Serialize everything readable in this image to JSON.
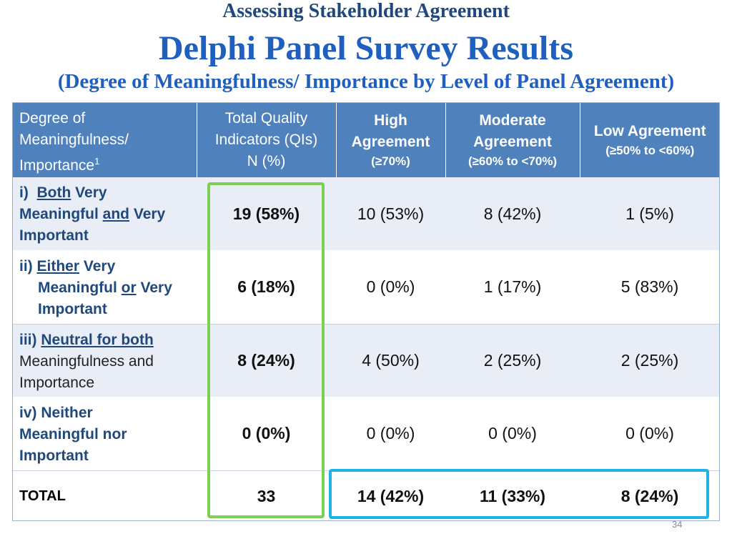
{
  "slide": {
    "supertitle": "Assessing Stakeholder Agreement",
    "title": "Delphi Panel Survey Results",
    "subtitle": "(Degree of Meaningfulness/ Importance by Level of Panel Agreement)",
    "page_number": "34"
  },
  "table": {
    "headers": {
      "degree_line1": "Degree of",
      "degree_line2": "Meaningfulness/",
      "degree_line3": "Importance",
      "degree_sup": "1",
      "total_line1": "Total  Quality",
      "total_line2": "Indicators (QIs)",
      "total_line3": "N (%)",
      "high_line1": "High",
      "high_line2": "Agreement",
      "high_range": "(≥70%)",
      "moderate_line1": "Moderate",
      "moderate_line2": "Agreement",
      "moderate_range": "(≥60% to <70%)",
      "low_line1": "Low Agreement",
      "low_range": "(≥50% to <60%)"
    },
    "rows": [
      {
        "prefix": "i)",
        "label_a": "Both",
        "label_b": " Very",
        "label_c": "Meaningful ",
        "label_d": "and",
        "label_e": " Very",
        "label_f": "Important",
        "total": "19 (58%)",
        "high": "10 (53%)",
        "moderate": "8 (42%)",
        "low": "1 (5%)"
      },
      {
        "prefix": "ii)",
        "label_a": "Either",
        "label_b": " Very",
        "label_c": "Meaningful ",
        "label_d": "or",
        "label_e": " Very",
        "label_f": "Important",
        "total": "6 (18%)",
        "high": "0 (0%)",
        "moderate": "1 (17%)",
        "low": "5 (83%)"
      },
      {
        "prefix": "iii)",
        "label_a": "Neutral for both",
        "label_b": "Meaningfulness and",
        "label_c": "Importance",
        "total": "8 (24%)",
        "high": "4 (50%)",
        "moderate": "2 (25%)",
        "low": "2 (25%)"
      },
      {
        "prefix": "iv)",
        "label_a": "Neither",
        "label_b": "Meaningful nor",
        "label_c": "Important",
        "total": "0 (0%)",
        "high": "0 (0%)",
        "moderate": "0 (0%)",
        "low": "0 (0%)"
      }
    ],
    "total_row": {
      "label": "TOTAL",
      "total": "33",
      "high": "14 (42%)",
      "moderate": "11 (33%)",
      "low": "8 (24%)"
    }
  },
  "colors": {
    "header_bg": "#4f81bd",
    "title_blue": "#1f5fbf",
    "label_blue": "#1f497d",
    "highlight_green": "#7ccf4f",
    "highlight_blue": "#1fb3e5"
  }
}
